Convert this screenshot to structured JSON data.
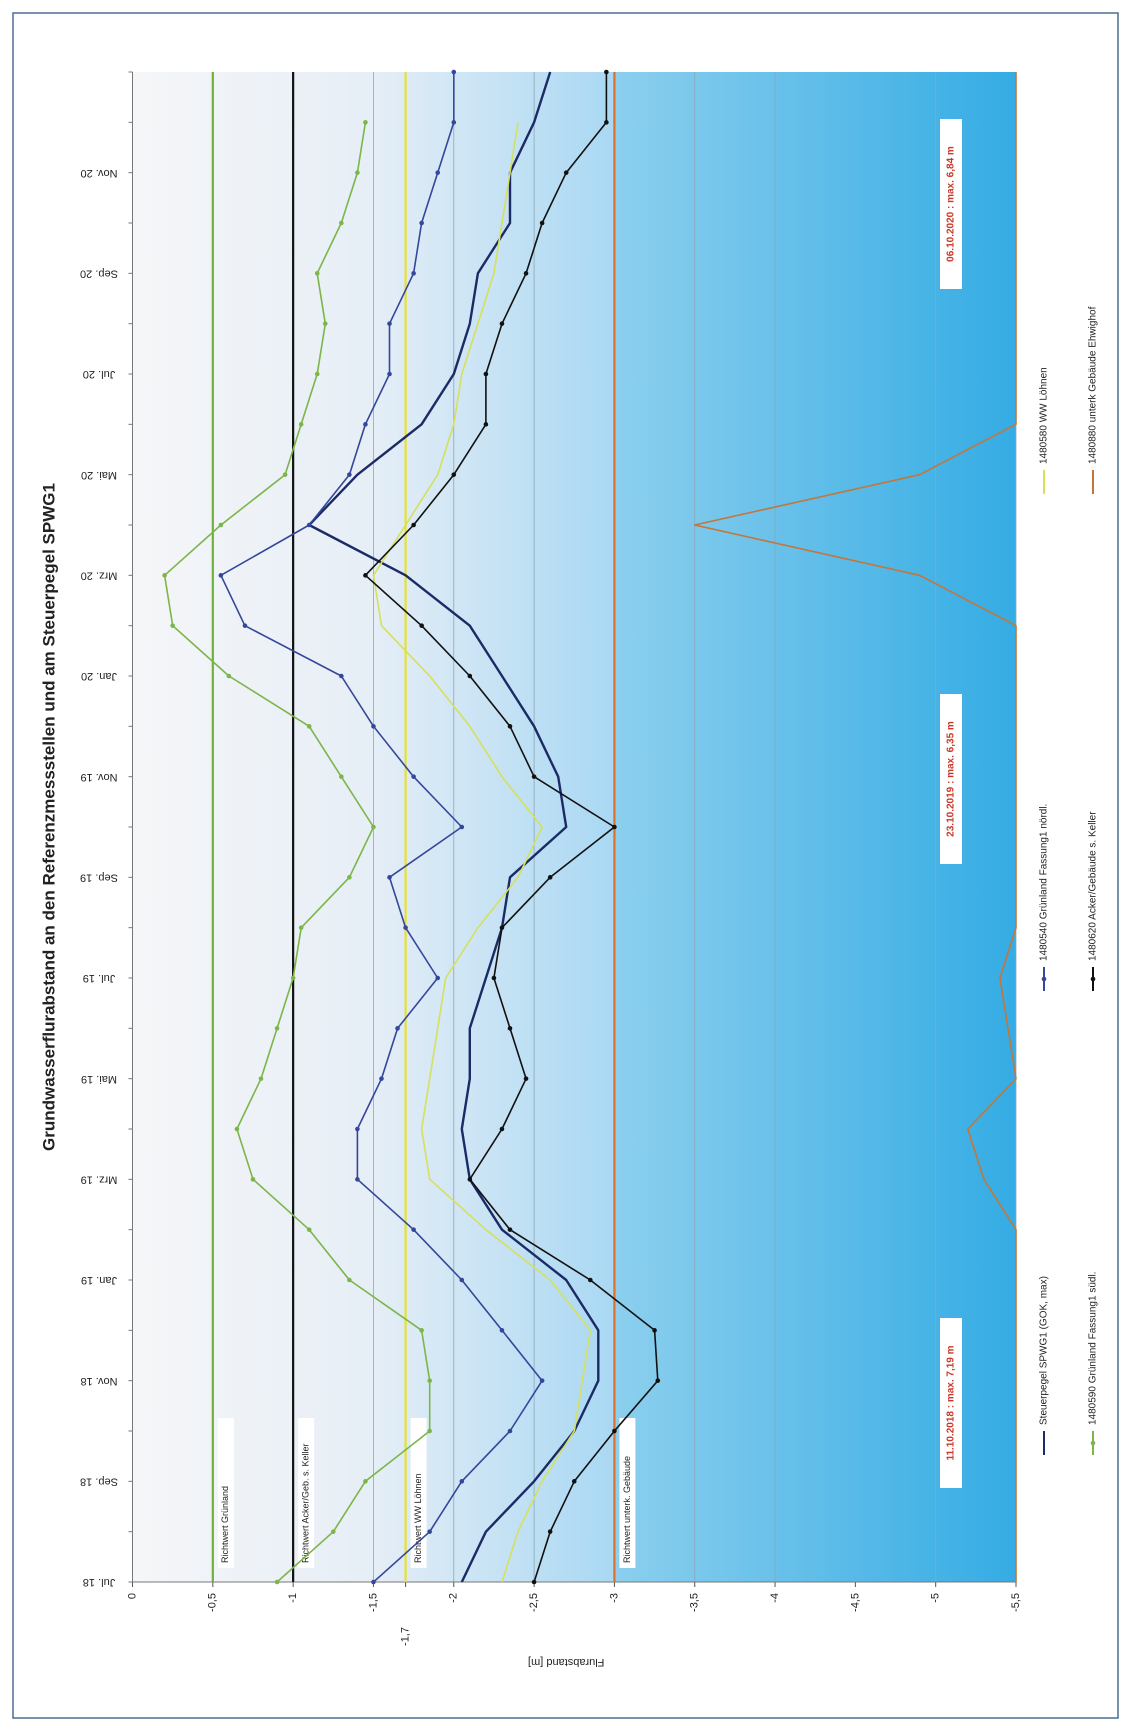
{
  "chart_data": {
    "type": "line",
    "title": "Grundwasserflurabstand an den Referenzmessstellen und am Steuerpegel SPWG1",
    "ylabel": "Flurabstand [m]",
    "categories": [
      "Jul. 18",
      null,
      "Sep. 18",
      null,
      "Nov. 18",
      null,
      "Jan. 19",
      null,
      "Mrz. 19",
      null,
      "Mai. 19",
      null,
      "Jul. 19",
      null,
      "Sep. 19",
      null,
      "Nov. 19",
      null,
      "Jan. 20",
      null,
      "Mrz. 20",
      null,
      "Mai. 20",
      null,
      "Jul. 20",
      null,
      "Sep. 20",
      null,
      "Nov. 20",
      null,
      null
    ],
    "ylim": [
      0,
      -5.5
    ],
    "yticks": [
      0,
      {
        "value": -0.5,
        "label": "-0,5"
      },
      -1,
      {
        "value": -1.5,
        "label": "-1,5"
      },
      {
        "value": -1.7,
        "label": "-1,7"
      },
      -2,
      {
        "value": -2.5,
        "label": "-2,5"
      },
      -3,
      {
        "value": -3.5,
        "label": "-3,5"
      },
      -4,
      {
        "value": -4.5,
        "label": "-4,5"
      },
      -5,
      {
        "value": -5.5,
        "label": "-5,5"
      }
    ],
    "grid": true,
    "series": [
      {
        "name": "Steuerpegel SPWG1 (GOK, max)",
        "color": "#1c2a66",
        "markers": false,
        "values": [
          -2.05,
          -2.2,
          -2.5,
          -2.75,
          -2.9,
          -2.9,
          -2.7,
          -2.3,
          -2.1,
          -2.05,
          -2.1,
          -2.1,
          -2.2,
          -2.3,
          -2.35,
          -2.7,
          -2.65,
          -2.5,
          -2.3,
          -2.1,
          -1.7,
          -1.1,
          -1.4,
          -1.8,
          -2.0,
          -2.1,
          -2.15,
          -2.35,
          -2.35,
          -2.5,
          -2.6
        ]
      },
      {
        "name": "1480540 Grünland Fassung1 nördl.",
        "color": "#34479a",
        "markers": true,
        "values": [
          -1.5,
          -1.85,
          -2.05,
          -2.35,
          -2.55,
          -2.3,
          -2.05,
          -1.75,
          -1.4,
          -1.4,
          -1.55,
          -1.65,
          -1.9,
          -1.7,
          -1.6,
          -2.05,
          -1.75,
          -1.5,
          -1.3,
          -0.7,
          -0.55,
          -1.1,
          -1.35,
          -1.45,
          -1.6,
          -1.6,
          -1.75,
          -1.8,
          -1.9,
          -2.0,
          -2.0
        ]
      },
      {
        "name": "1480580 WW Löhnen",
        "color": "#d6e05a",
        "markers": false,
        "values": [
          -2.3,
          -2.4,
          -2.55,
          -2.75,
          -2.8,
          -2.85,
          -2.6,
          -2.2,
          -1.85,
          -1.8,
          -1.85,
          -1.9,
          -1.95,
          -2.15,
          -2.4,
          -2.55,
          -2.3,
          -2.1,
          -1.85,
          -1.55,
          -1.5,
          -1.7,
          -1.9,
          -2.0,
          -2.05,
          -2.15,
          -2.25,
          -2.3,
          -2.35,
          -2.4,
          null
        ]
      },
      {
        "name": "1480590 Grünland Fassung1 südl.",
        "color": "#7cb548",
        "markers": true,
        "values": [
          -0.9,
          -1.25,
          -1.45,
          -1.85,
          -1.85,
          -1.8,
          -1.35,
          -1.1,
          -0.75,
          -0.65,
          -0.8,
          -0.9,
          -1.0,
          -1.05,
          -1.35,
          -1.5,
          -1.3,
          -1.1,
          -0.6,
          -0.25,
          -0.2,
          -0.55,
          -0.95,
          -1.05,
          -1.15,
          -1.2,
          -1.15,
          -1.3,
          -1.4,
          -1.45,
          null
        ]
      },
      {
        "name": "1480620 Acker/Gebäude s. Keller",
        "color": "#111111",
        "markers": true,
        "values": [
          -2.5,
          -2.6,
          -2.75,
          -3.0,
          -3.27,
          -3.25,
          -2.85,
          -2.35,
          -2.1,
          -2.3,
          -2.45,
          -2.35,
          -2.25,
          -2.3,
          -2.6,
          -3.0,
          -2.5,
          -2.35,
          -2.1,
          -1.8,
          -1.45,
          -1.75,
          -2.0,
          -2.2,
          -2.2,
          -2.3,
          -2.45,
          -2.55,
          -2.7,
          -2.95,
          -2.95
        ]
      },
      {
        "name": "1480880 unterk Gebäude Ehwighof",
        "color": "#c4763a",
        "markers": false,
        "values": [
          -5.5,
          -5.5,
          -5.5,
          -5.5,
          -5.5,
          -5.5,
          -5.5,
          -5.5,
          -5.3,
          -5.2,
          -5.5,
          -5.45,
          -5.4,
          -5.5,
          -5.5,
          -5.5,
          -5.5,
          -5.5,
          -5.5,
          -5.5,
          -4.9,
          -3.5,
          -4.9,
          -5.5,
          -5.5,
          -5.5,
          -5.5,
          -5.5,
          -5.5,
          -5.5,
          -5.5
        ]
      }
    ],
    "thresholds": [
      {
        "label": "Richtwert Grünland",
        "value": -0.5,
        "color": "#6fb23a"
      },
      {
        "label": "Richtwert Acker/Geb. s. Keller",
        "value": -1,
        "color": "#111111"
      },
      {
        "label": "Richtwert WW Löhnen",
        "value": -1.7,
        "color": "#e8e030"
      },
      {
        "label": "Richtwert unterk. Gebäude",
        "value": -3,
        "color": "#e0702a"
      }
    ],
    "annotations": [
      "11.10.2018 : max. 7,19 m",
      "23.10.2019 : max. 6,35 m",
      "06.10.2020 : max. 6,84 m"
    ]
  }
}
